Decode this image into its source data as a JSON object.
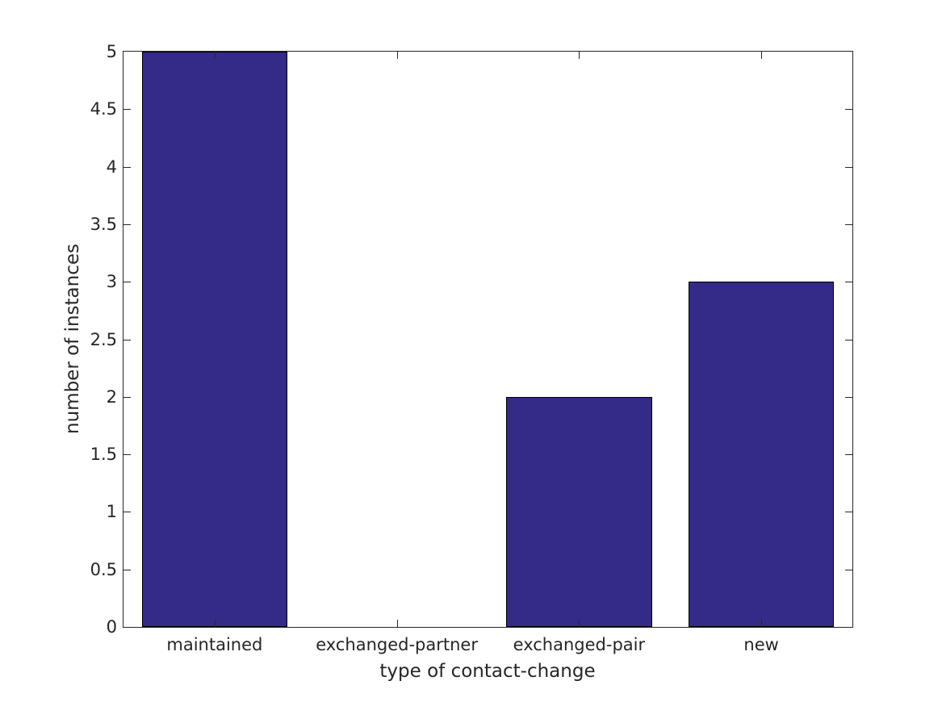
{
  "chart_data": {
    "type": "bar",
    "title": "",
    "categories": [
      "maintained",
      "exchanged-partner",
      "exchanged-pair",
      "new"
    ],
    "values": [
      5,
      0,
      2,
      3
    ],
    "xlabel": "type of contact-change",
    "ylabel": "number of instances",
    "ylim": [
      0,
      5
    ],
    "yticks": [
      0,
      0.5,
      1,
      1.5,
      2,
      2.5,
      3,
      3.5,
      4,
      4.5,
      5
    ],
    "ytick_labels": [
      "0",
      "0.5",
      "1",
      "1.5",
      "2",
      "2.5",
      "3",
      "3.5",
      "4",
      "4.5",
      "5"
    ],
    "bar_width_fraction": 0.8,
    "bar_color": "#342a87",
    "bar_edge_color": "#000000",
    "axis_color": "#262626",
    "background_color": "#ffffff",
    "grid": false,
    "box": true,
    "tick_direction": "in",
    "legend": null
  }
}
